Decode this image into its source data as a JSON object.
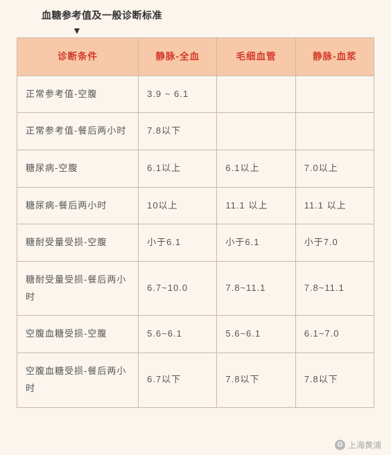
{
  "title": "血糖参考值及一般诊断标准",
  "arrow_glyph": "▼",
  "table": {
    "headers": [
      "诊断条件",
      "静脉-全血",
      "毛细血管",
      "静脉-血浆"
    ],
    "header_bg": "#f7c9a8",
    "header_color": "#d43a2a",
    "border_color": "#c9b9a6",
    "background_color": "#fbf5ee",
    "col_widths_pct": [
      34,
      22,
      22,
      22
    ],
    "fontsize": 13,
    "header_fontsize": 13.5,
    "cell_padding": "14px 12px",
    "line_height": 1.9,
    "rows": [
      [
        "正常参考值-空腹",
        "3.9 ~ 6.1",
        "",
        ""
      ],
      [
        "正常参考值-餐后两小时",
        "7.8以下",
        "",
        ""
      ],
      [
        "糖尿病-空腹",
        "6.1以上",
        "6.1以上",
        "7.0以上"
      ],
      [
        "糖尿病-餐后两小时",
        "10以上",
        "11.1 以上",
        "11.1 以上"
      ],
      [
        "糖耐受量受损-空腹",
        "小于6.1",
        "小于6.1",
        "小于7.0"
      ],
      [
        "糖耐受量受损-餐后两小时",
        "6.7~10.0",
        "7.8~11.1",
        "7.8~11.1"
      ],
      [
        "空腹血糖受损-空腹",
        "5.6~6.1",
        "5.6~6.1",
        "6.1~7.0"
      ],
      [
        "空腹血糖受损-餐后两小时",
        "6.7以下",
        "7.8以下",
        "7.8以下"
      ]
    ]
  },
  "footer": {
    "icon_glyph": "G",
    "text": "上海黄浦"
  }
}
